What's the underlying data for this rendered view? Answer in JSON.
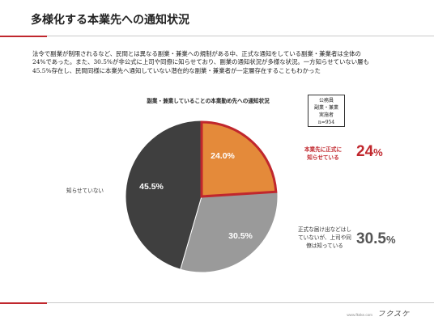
{
  "slide": {
    "title": "多様化する本業先への通知状況",
    "description": "法令で副業が制限されるなど、民間とは異なる副業・兼業への規制がある中、正式な通知をしている副業・兼業者は全体の\n24%であった。また、30.5%が非公式に上司や同僚に知らせており、副業の通知状況が多様な状況。一方知らせていない層も\n45.5%存在し、民間同様に本業先へ通知していない潜在的な副業・兼業者が一定層存在することもわかった"
  },
  "respondent_box": {
    "line1": "公務員",
    "line2": "副業・兼業",
    "line3": "実施者",
    "line4": "n=954"
  },
  "chart_data": {
    "type": "pie",
    "title": "副業・兼業していることの本業勤め先への通知状況",
    "slices": [
      {
        "label": "本業先に正式に知らせている",
        "value": 24.0,
        "display": "24.0%",
        "color": "#e48a3a"
      },
      {
        "label": "正式な届け出などはしていないが、上司や同僚は知っている",
        "value": 30.5,
        "display": "30.5%",
        "color": "#9a9a9a"
      },
      {
        "label": "知らせていない",
        "value": 45.5,
        "display": "45.5%",
        "color": "#3f3f3f"
      }
    ],
    "highlight_color": "#c0272d"
  },
  "labels": {
    "formal": {
      "line1": "本業先に正式に",
      "line2": "知らせている",
      "pct_num": "24",
      "pct_unit": "%"
    },
    "informal": {
      "line1": "正式な届け出などはし",
      "line2": "ていないが、上司や同",
      "line3": "僚は知っている",
      "pct_num": "30.5",
      "pct_unit": "%"
    },
    "none": {
      "line1": "知らせていない"
    }
  },
  "footer": {
    "url": "www.fkske.com",
    "logo": "フクスケ"
  }
}
